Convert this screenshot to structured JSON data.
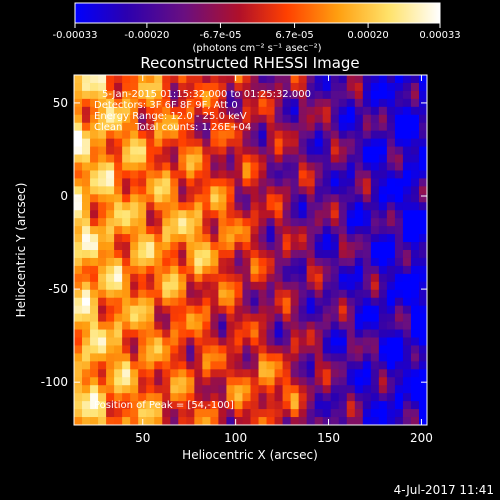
{
  "colorbar": {
    "tick_labels": [
      "-0.00033",
      "-0.00020",
      "-6.7e-05",
      "6.7e-05",
      "0.00020",
      "0.00033"
    ],
    "tick_values": [
      -0.00033,
      -0.0002,
      -6.7e-05,
      6.7e-05,
      0.0002,
      0.00033
    ],
    "range": [
      -0.00033,
      0.00033
    ],
    "unit_label": "(photons cm⁻² s⁻¹ asec⁻²)",
    "colors": [
      "#0000ff",
      "#2b00b0",
      "#6a0f80",
      "#b0102a",
      "#ff4000",
      "#ff9f10",
      "#ffe26a",
      "#ffffff"
    ]
  },
  "chart_data": {
    "type": "heatmap",
    "title": "Reconstructed RHESSI Image",
    "xlabel": "Heliocentric X (arcsec)",
    "ylabel": "Heliocentric Y (arcsec)",
    "xlim": [
      13,
      203
    ],
    "ylim": [
      -123,
      65
    ],
    "x_ticks": [
      50,
      100,
      150,
      200
    ],
    "y_ticks": [
      -100,
      -50,
      0,
      50
    ],
    "annotations": [
      "5-Jan-2015 01:15:32.000 to 01:25:32.000",
      "Detectors: 3F 6F 8F 9F, Att 0",
      "Energy Range: 12.0 - 25.0 keV",
      "Clean    Total counts: 1.26E+04"
    ],
    "peak_label": "Position of Peak = [54,-100]",
    "peak": [
      54,
      -100
    ],
    "grid": false
  },
  "timestamp": "4-Jul-2017 11:41"
}
